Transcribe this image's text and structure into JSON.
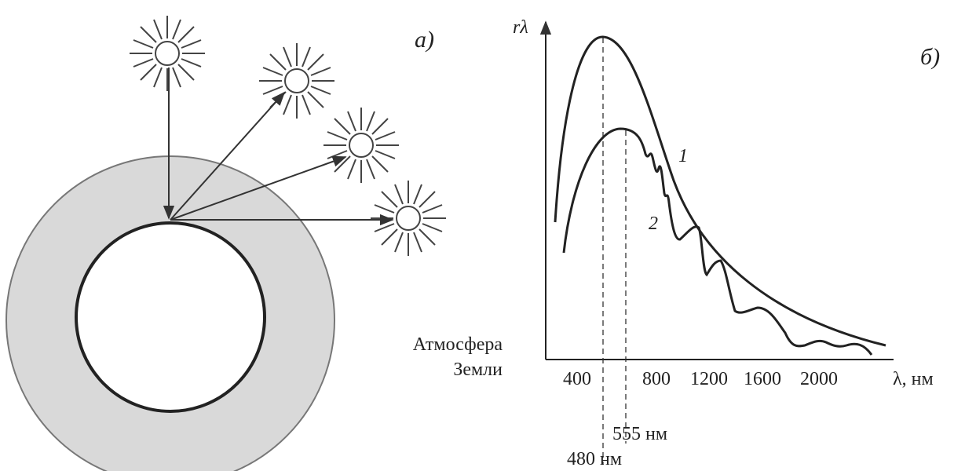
{
  "panel_a": {
    "label": "а)",
    "atmosphere_label": [
      "Атмосфера",
      "Земли"
    ]
  },
  "panel_b": {
    "label": "б)",
    "y_axis_label": "rλ",
    "x_axis_label": "λ, нм",
    "x_tick_labels": [
      "400",
      "800",
      "1200",
      "1600",
      "2000"
    ],
    "curve_labels": [
      "1",
      "2"
    ],
    "markers": [
      "555 нм",
      "480 нм"
    ]
  }
}
